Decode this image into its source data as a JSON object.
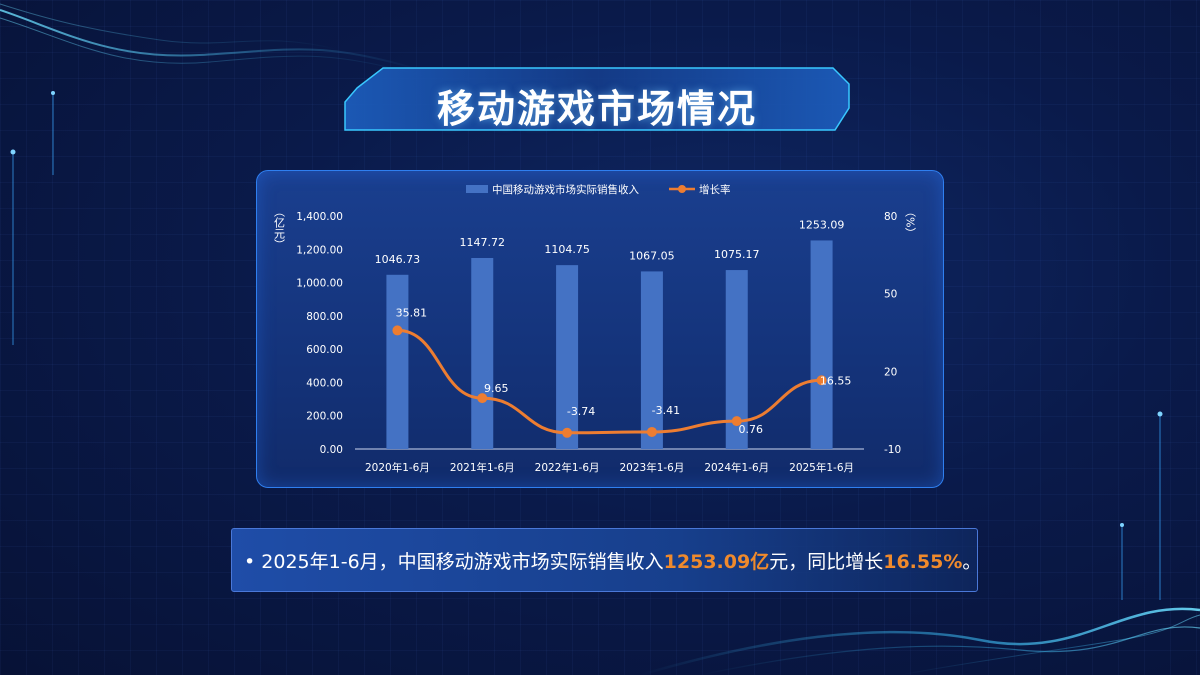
{
  "page": {
    "title": "移动游戏市场情况",
    "colors": {
      "bar": "#4472c4",
      "line": "#ed7d31",
      "highlight": "#f08a2c",
      "panel_border": "#2f7ff0"
    }
  },
  "chart_data": {
    "type": "bar+line",
    "categories": [
      "2020年1-6月",
      "2021年1-6月",
      "2022年1-6月",
      "2023年1-6月",
      "2024年1-6月",
      "2025年1-6月"
    ],
    "series": [
      {
        "name": "中国移动游戏市场实际销售收入",
        "type": "bar",
        "axis": "left",
        "values": [
          1046.73,
          1147.72,
          1104.75,
          1067.05,
          1075.17,
          1253.09
        ],
        "labels": [
          "1046.73",
          "1147.72",
          "1104.75",
          "1067.05",
          "1075.17",
          "1253.09"
        ]
      },
      {
        "name": "增长率",
        "type": "line",
        "axis": "right",
        "values": [
          35.81,
          9.65,
          -3.74,
          -3.41,
          0.76,
          16.55
        ],
        "labels": [
          "35.81",
          "9.65",
          "-3.74",
          "-3.41",
          "0.76",
          "16.55"
        ]
      }
    ],
    "left_axis": {
      "unit_label": "（亿元）",
      "ylim": [
        0,
        1400
      ],
      "ticks": [
        0,
        200,
        400,
        600,
        800,
        1000,
        1200,
        1400
      ],
      "tick_labels": [
        "0.00",
        "200.00",
        "400.00",
        "600.00",
        "800.00",
        "1,000.00",
        "1,200.00",
        "1,400.00"
      ]
    },
    "right_axis": {
      "unit_label": "（%）",
      "ylim": [
        -10,
        80
      ],
      "ticks": [
        -10,
        20,
        50,
        80
      ],
      "tick_labels": [
        "-10",
        "20",
        "50",
        "80"
      ]
    },
    "legend": {
      "placement": "top"
    },
    "grid": false
  },
  "summary": {
    "bullet": "•",
    "prefix": "2025年1-6月，中国移动游戏市场实际销售收入",
    "revenue": "1253.09亿",
    "middle": "元，同比增长",
    "growth": "16.55%",
    "suffix": "。"
  }
}
